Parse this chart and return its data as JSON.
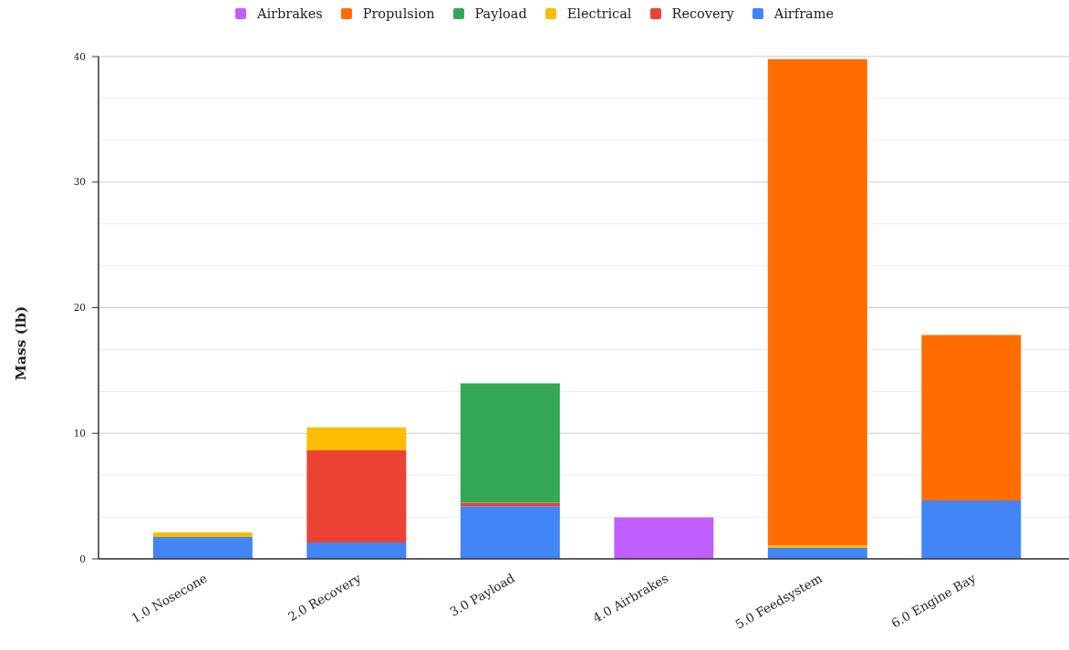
{
  "chart_data": {
    "type": "bar",
    "stacked": true,
    "categories": [
      "1.0 Nosecone",
      "2.0 Recovery",
      "3.0 Payload",
      "4.0 Airbrakes",
      "5.0 Feedsystem",
      "6.0 Engine Bay"
    ],
    "series": [
      {
        "name": "Airframe",
        "color": "#4285f4",
        "values": [
          1.75,
          1.31,
          4.2,
          null,
          0.87,
          4.64
        ]
      },
      {
        "name": "Recovery",
        "color": "#ea4335",
        "values": [
          null,
          7.33,
          0.27,
          null,
          null,
          null
        ]
      },
      {
        "name": "Electrical",
        "color": "#fbbc04",
        "values": [
          0.36,
          1.84,
          null,
          null,
          0.2,
          null
        ]
      },
      {
        "name": "Payload",
        "color": "#34a853",
        "values": [
          null,
          null,
          9.5,
          null,
          null,
          null
        ]
      },
      {
        "name": "Propulsion",
        "color": "#ff6d01",
        "values": [
          null,
          null,
          null,
          null,
          38.72,
          13.19
        ]
      },
      {
        "name": "Airbrakes",
        "color": "#c05fff",
        "values": [
          null,
          null,
          null,
          3.3,
          null,
          null
        ]
      }
    ],
    "ylabel": "Mass (lb)",
    "ylim": [
      0,
      40
    ],
    "yticks": [
      0,
      {
        "value": 3.33,
        "label": null
      },
      {
        "value": 6.67,
        "label": null
      },
      10,
      {
        "value": 13.33,
        "label": null
      },
      {
        "value": 16.67,
        "label": null
      },
      20,
      {
        "value": 23.33,
        "label": null
      },
      {
        "value": 26.67,
        "label": null
      },
      30,
      {
        "value": 33.33,
        "label": null
      },
      {
        "value": 36.67,
        "label": null
      },
      40
    ],
    "grid": "y",
    "legend": "top"
  }
}
